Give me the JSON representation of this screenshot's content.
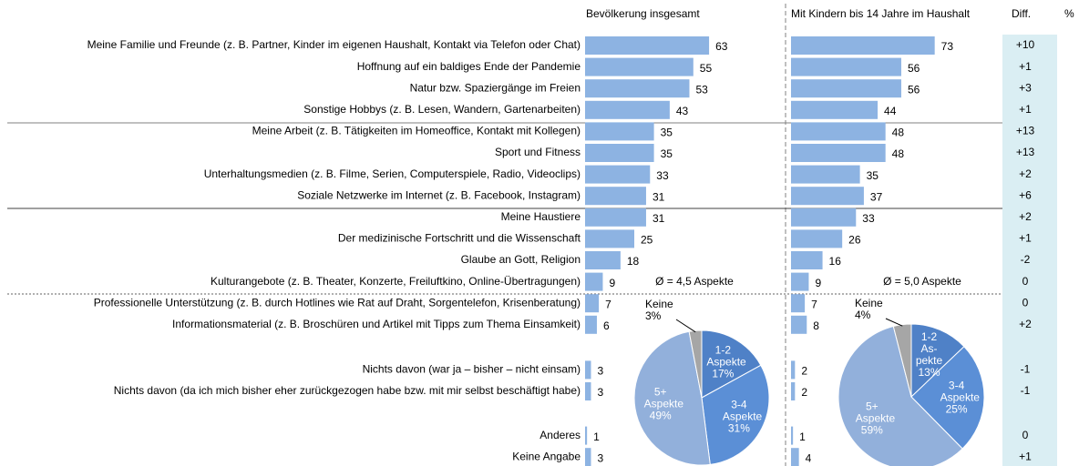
{
  "chart_data": [
    {
      "type": "bar",
      "orientation": "horizontal",
      "unit": "%",
      "categories": [
        "Meine Familie und Freunde (z. B. Partner, Kinder im eigenen Haushalt, Kontakt via Telefon oder Chat)",
        "Hoffnung auf ein baldiges Ende der Pandemie",
        "Natur bzw. Spaziergänge im Freien",
        "Sonstige Hobbys (z. B. Lesen, Wandern, Gartenarbeiten)",
        "Meine Arbeit (z. B. Tätigkeiten im Homeoffice, Kontakt mit Kollegen)",
        "Sport und Fitness",
        "Unterhaltungsmedien (z. B. Filme, Serien, Computerspiele, Radio, Videoclips)",
        "Soziale Netzwerke im Internet (z. B. Facebook, Instagram)",
        "Meine Haustiere",
        "Der medizinische Fortschritt und die Wissenschaft",
        "Glaube an Gott, Religion",
        "Kulturangebote (z. B. Theater, Konzerte, Freiluftkino, Online-Übertragungen)",
        "Professionelle Unterstützung (z. B. durch Hotlines wie Rat auf Draht, Sorgentelefon, Krisenberatung)",
        "Informationsmaterial (z. B. Broschüren und Artikel mit Tipps zum Thema Einsamkeit)",
        "Nichts davon (war ja – bisher – nicht einsam)",
        "Nichts davon (da ich mich bisher eher zurückgezogen habe bzw. mit mir selbst beschäftigt habe)",
        "Anderes",
        "Keine Angabe"
      ],
      "series": [
        {
          "name": "Bevölkerung insgesamt",
          "color": "#8db3e2",
          "values": [
            63,
            55,
            53,
            43,
            35,
            35,
            33,
            31,
            31,
            25,
            18,
            9,
            7,
            6,
            3,
            3,
            1,
            3
          ],
          "annotation": "Ø = 4,5 Aspekte"
        },
        {
          "name": "Mit Kindern bis 14 Jahre im Haushalt",
          "color": "#8db3e2",
          "values": [
            73,
            56,
            56,
            44,
            48,
            48,
            35,
            37,
            33,
            26,
            16,
            9,
            7,
            8,
            2,
            2,
            1,
            4
          ],
          "annotation": "Ø = 5,0 Aspekte"
        }
      ],
      "diff": {
        "title": "Diff.",
        "background": "#daeef3",
        "color": "#000000",
        "negative_color": "#e00000",
        "values": [
          10,
          1,
          3,
          1,
          13,
          13,
          2,
          6,
          2,
          1,
          -2,
          0,
          0,
          2,
          -1,
          -1,
          0,
          1
        ],
        "value_labels": [
          "+10",
          "+1",
          "+3",
          "+1",
          "+13",
          "+13",
          "+2",
          "+6",
          "+2",
          "+1",
          "-2",
          "0",
          "0",
          "+2",
          "-1",
          "-1",
          "0",
          "+1"
        ]
      }
    },
    {
      "type": "pie",
      "categories": [
        "1-2 Aspekte",
        "3-4 Aspekte",
        "5+ Aspekte",
        "Keine"
      ],
      "values": [
        17,
        31,
        49,
        3
      ],
      "value_labels": [
        "17%",
        "31%",
        "49%",
        "3%"
      ],
      "colors": [
        "#4f81c7",
        "#5b8fd6",
        "#92b0db",
        "#a6a6a6"
      ]
    },
    {
      "type": "pie",
      "categories": [
        "1-2 As-pekte",
        "3-4 Aspekte",
        "5+ Aspekte",
        "Keine"
      ],
      "values": [
        13,
        25,
        59,
        4
      ],
      "value_labels": [
        "13%",
        "25%",
        "59%",
        "4%"
      ],
      "colors": [
        "#4f81c7",
        "#5b8fd6",
        "#92b0db",
        "#a6a6a6"
      ]
    }
  ]
}
